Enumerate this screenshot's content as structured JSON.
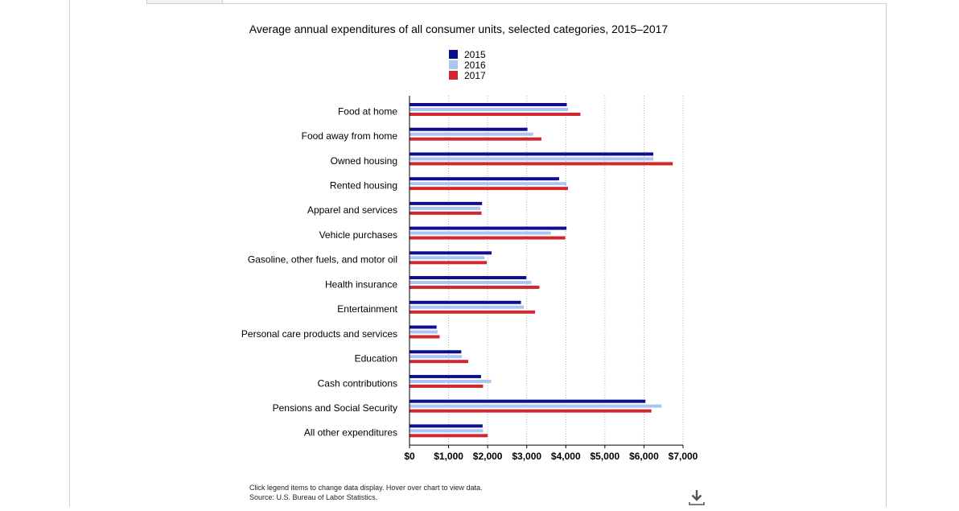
{
  "chart_data": {
    "type": "bar",
    "orientation": "horizontal",
    "title": "Average annual expenditures of all consumer units, selected categories, 2015–2017",
    "categories": [
      "Food at home",
      "Food away from home",
      "Owned housing",
      "Rented housing",
      "Apparel and services",
      "Vehicle purchases",
      "Gasoline, other fuels, and motor oil",
      "Health insurance",
      "Entertainment",
      "Personal care products and services",
      "Education",
      "Cash contributions",
      "Pensions and Social Security",
      "All other expenditures"
    ],
    "series": [
      {
        "name": "2015",
        "color": "#0e0e8f",
        "values": [
          4015,
          3008,
          6229,
          3818,
          1846,
          4007,
          2090,
          2979,
          2842,
          683,
          1315,
          1819,
          6027,
          1860
        ]
      },
      {
        "name": "2016",
        "color": "#a9c6f2",
        "values": [
          4049,
          3154,
          6230,
          4006,
          1803,
          3608,
          1909,
          3111,
          2913,
          707,
          1329,
          2081,
          6441,
          1876
        ]
      },
      {
        "name": "2017",
        "color": "#d1272e",
        "values": [
          4363,
          3365,
          6726,
          4044,
          1833,
          3976,
          1968,
          3314,
          3203,
          762,
          1491,
          1873,
          6180,
          1991
        ]
      }
    ],
    "x_ticks": [
      "$0",
      "$1,000",
      "$2,000",
      "$3,000",
      "$4,000",
      "$5,000",
      "$6,000",
      "$7,000"
    ],
    "xlim": [
      0,
      7000
    ],
    "grid": "vertical dotted",
    "legend": "top-center"
  },
  "footnote": {
    "line1": "Click legend items to change data display. Hover over chart to view data.",
    "line2": "Source: U.S. Bureau of Labor Statistics."
  },
  "icons": {
    "download": "download-icon"
  }
}
